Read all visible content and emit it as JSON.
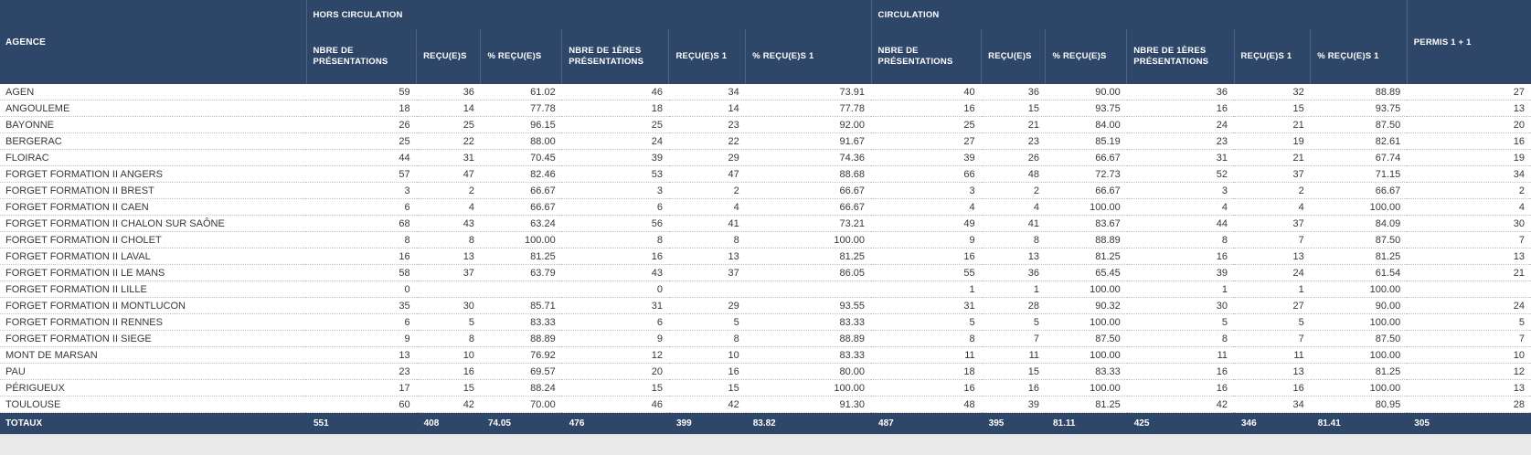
{
  "table": {
    "agency_header": "AGENCE",
    "groups": {
      "hors_circulation": "HORS CIRCULATION",
      "circulation": "CIRCULATION"
    },
    "permis_header": "PERMIS 1 + 1",
    "sub_headers": [
      "NBRE DE PRÉSENTATIONS",
      "REÇU(E)S",
      "% REÇU(E)S",
      "NBRE DE 1ÈRES PRÉSENTATIONS",
      "REÇU(E)S 1",
      "% REÇU(E)S 1"
    ],
    "rows": [
      {
        "agence": "AGEN",
        "values": [
          "59",
          "36",
          "61.02",
          "46",
          "34",
          "73.91",
          "40",
          "36",
          "90.00",
          "36",
          "32",
          "88.89",
          "27"
        ]
      },
      {
        "agence": "ANGOULEME",
        "values": [
          "18",
          "14",
          "77.78",
          "18",
          "14",
          "77.78",
          "16",
          "15",
          "93.75",
          "16",
          "15",
          "93.75",
          "13"
        ]
      },
      {
        "agence": "BAYONNE",
        "values": [
          "26",
          "25",
          "96.15",
          "25",
          "23",
          "92.00",
          "25",
          "21",
          "84.00",
          "24",
          "21",
          "87.50",
          "20"
        ]
      },
      {
        "agence": "BERGERAC",
        "values": [
          "25",
          "22",
          "88.00",
          "24",
          "22",
          "91.67",
          "27",
          "23",
          "85.19",
          "23",
          "19",
          "82.61",
          "16"
        ]
      },
      {
        "agence": "FLOIRAC",
        "values": [
          "44",
          "31",
          "70.45",
          "39",
          "29",
          "74.36",
          "39",
          "26",
          "66.67",
          "31",
          "21",
          "67.74",
          "19"
        ]
      },
      {
        "agence": "FORGET FORMATION II ANGERS",
        "values": [
          "57",
          "47",
          "82.46",
          "53",
          "47",
          "88.68",
          "66",
          "48",
          "72.73",
          "52",
          "37",
          "71.15",
          "34"
        ]
      },
      {
        "agence": "FORGET FORMATION II BREST",
        "values": [
          "3",
          "2",
          "66.67",
          "3",
          "2",
          "66.67",
          "3",
          "2",
          "66.67",
          "3",
          "2",
          "66.67",
          "2"
        ]
      },
      {
        "agence": "FORGET FORMATION II CAEN",
        "values": [
          "6",
          "4",
          "66.67",
          "6",
          "4",
          "66.67",
          "4",
          "4",
          "100.00",
          "4",
          "4",
          "100.00",
          "4"
        ]
      },
      {
        "agence": "FORGET FORMATION II CHALON SUR SAÔNE",
        "values": [
          "68",
          "43",
          "63.24",
          "56",
          "41",
          "73.21",
          "49",
          "41",
          "83.67",
          "44",
          "37",
          "84.09",
          "30"
        ]
      },
      {
        "agence": "FORGET FORMATION II CHOLET",
        "values": [
          "8",
          "8",
          "100.00",
          "8",
          "8",
          "100.00",
          "9",
          "8",
          "88.89",
          "8",
          "7",
          "87.50",
          "7"
        ]
      },
      {
        "agence": "FORGET FORMATION II LAVAL",
        "values": [
          "16",
          "13",
          "81.25",
          "16",
          "13",
          "81.25",
          "16",
          "13",
          "81.25",
          "16",
          "13",
          "81.25",
          "13"
        ]
      },
      {
        "agence": "FORGET FORMATION II LE MANS",
        "values": [
          "58",
          "37",
          "63.79",
          "43",
          "37",
          "86.05",
          "55",
          "36",
          "65.45",
          "39",
          "24",
          "61.54",
          "21"
        ]
      },
      {
        "agence": "FORGET FORMATION II LILLE",
        "values": [
          "0",
          "",
          "",
          "0",
          "",
          "",
          "1",
          "1",
          "100.00",
          "1",
          "1",
          "100.00",
          ""
        ]
      },
      {
        "agence": "FORGET FORMATION II MONTLUCON",
        "values": [
          "35",
          "30",
          "85.71",
          "31",
          "29",
          "93.55",
          "31",
          "28",
          "90.32",
          "30",
          "27",
          "90.00",
          "24"
        ]
      },
      {
        "agence": "FORGET FORMATION II RENNES",
        "values": [
          "6",
          "5",
          "83.33",
          "6",
          "5",
          "83.33",
          "5",
          "5",
          "100.00",
          "5",
          "5",
          "100.00",
          "5"
        ]
      },
      {
        "agence": "FORGET FORMATION II SIEGE",
        "values": [
          "9",
          "8",
          "88.89",
          "9",
          "8",
          "88.89",
          "8",
          "7",
          "87.50",
          "8",
          "7",
          "87.50",
          "7"
        ]
      },
      {
        "agence": "MONT DE MARSAN",
        "values": [
          "13",
          "10",
          "76.92",
          "12",
          "10",
          "83.33",
          "11",
          "11",
          "100.00",
          "11",
          "11",
          "100.00",
          "10"
        ]
      },
      {
        "agence": "PAU",
        "values": [
          "23",
          "16",
          "69.57",
          "20",
          "16",
          "80.00",
          "18",
          "15",
          "83.33",
          "16",
          "13",
          "81.25",
          "12"
        ]
      },
      {
        "agence": "PÉRIGUEUX",
        "values": [
          "17",
          "15",
          "88.24",
          "15",
          "15",
          "100.00",
          "16",
          "16",
          "100.00",
          "16",
          "16",
          "100.00",
          "13"
        ]
      },
      {
        "agence": "TOULOUSE",
        "values": [
          "60",
          "42",
          "70.00",
          "46",
          "42",
          "91.30",
          "48",
          "39",
          "81.25",
          "42",
          "34",
          "80.95",
          "28"
        ]
      }
    ],
    "totals": {
      "label": "TOTAUX",
      "values": [
        "551",
        "408",
        "74.05",
        "476",
        "399",
        "83.82",
        "487",
        "395",
        "81.11",
        "425",
        "346",
        "81.41",
        "305"
      ]
    },
    "colors": {
      "header_bg": "#2e4667",
      "header_text": "#ffffff",
      "row_divider": "#c6c2ba",
      "body_text": "#383838"
    }
  }
}
